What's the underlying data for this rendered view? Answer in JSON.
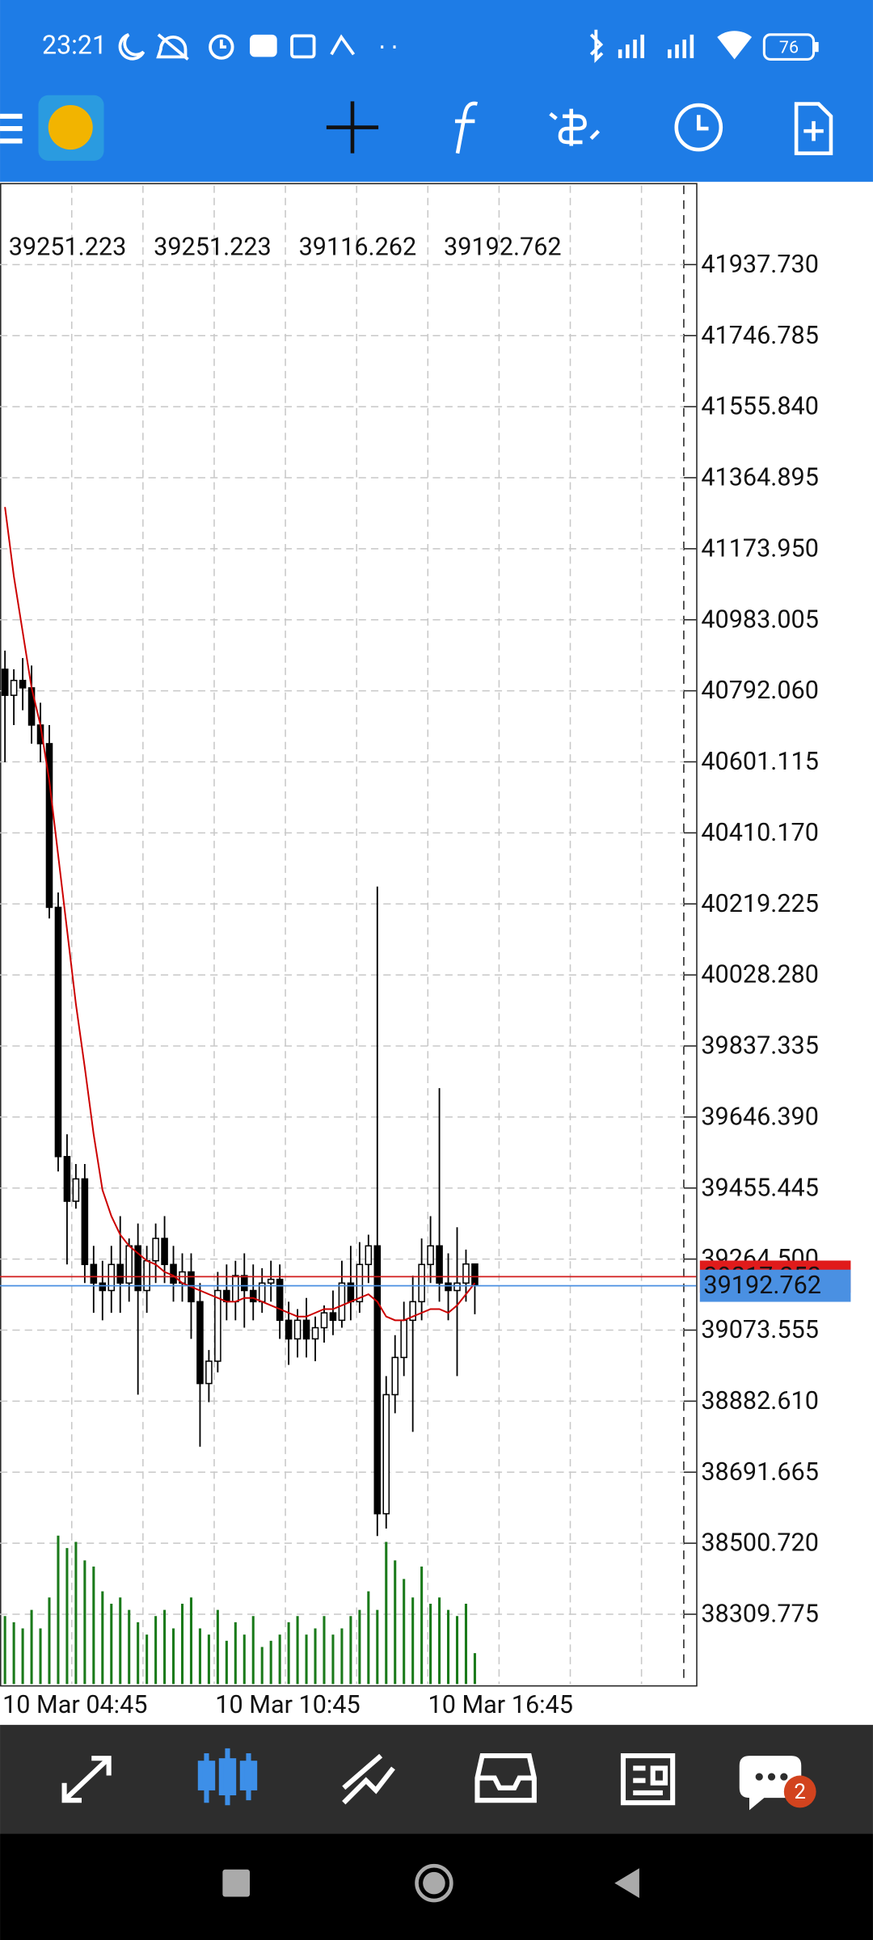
{
  "status_bar": {
    "time": "23:21",
    "battery": "76"
  },
  "chart_data": {
    "type": "candlestick",
    "ohlc_header": [
      39251.223,
      39251.223,
      39116.262,
      39192.762
    ],
    "categories": [
      "10 Mar 04:45",
      null,
      null,
      null,
      null,
      null,
      null,
      null,
      null,
      null,
      null,
      null,
      null,
      null,
      null,
      null,
      null,
      null,
      null,
      null,
      null,
      null,
      null,
      null,
      "10 Mar 10:45",
      null,
      null,
      null,
      null,
      null,
      null,
      null,
      null,
      null,
      null,
      null,
      null,
      null,
      null,
      null,
      null,
      null,
      null,
      null,
      null,
      null,
      null,
      null,
      "10 Mar 16:45",
      null,
      null,
      null,
      null,
      null
    ],
    "open": [
      40850,
      40780,
      40820,
      40800,
      40700,
      40650,
      40210,
      39540,
      39420,
      39480,
      39250,
      39200,
      39180,
      39250,
      39200,
      39300,
      39180,
      39260,
      39320,
      39250,
      39200,
      39230,
      39150,
      38930,
      38990,
      39180,
      39150,
      39220,
      39180,
      39150,
      39200,
      39210,
      39100,
      39050,
      39100,
      39050,
      39080,
      39120,
      39100,
      39200,
      39150,
      39250,
      39300,
      38580,
      38900,
      39000,
      39100,
      39150,
      39250,
      39300,
      39200,
      39180,
      39200,
      39251.223
    ],
    "high": [
      40900,
      40850,
      40880,
      40860,
      40760,
      40700,
      40250,
      39600,
      39520,
      39520,
      39300,
      39260,
      39300,
      39380,
      39320,
      39360,
      39300,
      39360,
      39380,
      39300,
      39280,
      39280,
      39200,
      39020,
      39230,
      39250,
      39260,
      39280,
      39250,
      39240,
      39260,
      39250,
      39150,
      39130,
      39160,
      39110,
      39140,
      39180,
      39260,
      39300,
      39310,
      39330,
      40266,
      38950,
      39060,
      39150,
      39220,
      39320,
      39380,
      39724,
      39280,
      39350,
      39290,
      39251.223
    ],
    "low": [
      40600,
      40700,
      40740,
      40650,
      40600,
      40180,
      39500,
      39250,
      39400,
      39200,
      39120,
      39100,
      39120,
      39120,
      39150,
      38900,
      39120,
      39200,
      39200,
      39150,
      39150,
      39050,
      38760,
      38880,
      38960,
      39100,
      39100,
      39080,
      39100,
      39120,
      39150,
      39050,
      38980,
      39000,
      39000,
      38990,
      39040,
      39060,
      39080,
      39100,
      39120,
      39200,
      38520,
      38540,
      38850,
      38950,
      38800,
      39100,
      39200,
      39150,
      39100,
      38950,
      39150,
      39116.262
    ],
    "close": [
      40780,
      40820,
      40800,
      40700,
      40650,
      40210,
      39540,
      39420,
      39480,
      39250,
      39200,
      39180,
      39250,
      39200,
      39300,
      39180,
      39260,
      39320,
      39250,
      39200,
      39230,
      39150,
      38930,
      38990,
      39180,
      39150,
      39220,
      39180,
      39150,
      39200,
      39210,
      39100,
      39050,
      39100,
      39050,
      39080,
      39120,
      39100,
      39200,
      39150,
      39250,
      39300,
      38580,
      38900,
      39000,
      39100,
      39150,
      39250,
      39300,
      39200,
      39180,
      39200,
      39251.223,
      39192.762
    ],
    "volume": [
      55,
      50,
      45,
      60,
      45,
      70,
      120,
      110,
      115,
      100,
      95,
      75,
      65,
      70,
      60,
      50,
      40,
      55,
      60,
      45,
      65,
      70,
      45,
      40,
      60,
      35,
      50,
      40,
      55,
      30,
      35,
      40,
      50,
      55,
      40,
      45,
      55,
      40,
      45,
      55,
      60,
      75,
      60,
      115,
      100,
      85,
      70,
      95,
      65,
      70,
      60,
      55,
      65,
      25
    ],
    "volume_color": "#1a7a1a",
    "ma": {
      "color": "#cc0000",
      "values": [
        41286,
        41100,
        40950,
        40800,
        40700,
        40550,
        40350,
        40150,
        39950,
        39780,
        39600,
        39450,
        39380,
        39330,
        39300,
        39280,
        39260,
        39250,
        39230,
        39220,
        39200,
        39190,
        39180,
        39170,
        39160,
        39150,
        39150,
        39160,
        39160,
        39150,
        39140,
        39130,
        39120,
        39110,
        39110,
        39120,
        39130,
        39130,
        39140,
        39150,
        39160,
        39170,
        39150,
        39110,
        39100,
        39100,
        39110,
        39120,
        39130,
        39130,
        39120,
        39140,
        39170,
        39200
      ]
    },
    "bid": 39192.762,
    "ask": 39217.252,
    "ylim": [
      38118.8,
      42157.1
    ],
    "yticks": [
      {
        "value": 41937.73,
        "label": "41937.730"
      },
      41746.785,
      {
        "value": 41555.84,
        "label": "41555.840"
      },
      41364.895,
      {
        "value": 41173.95,
        "label": "41173.950"
      },
      40983.005,
      {
        "value": 40792.06,
        "label": "40792.060"
      },
      40601.115,
      {
        "value": 40410.17,
        "label": "40410.170"
      },
      40219.225,
      {
        "value": 40028.28,
        "label": "40028.280"
      },
      39837.335,
      {
        "value": 39646.39,
        "label": "39646.390"
      },
      39455.445,
      {
        "value": 39264.5,
        "label": "39264.500"
      },
      39073.555,
      {
        "value": 38882.61,
        "label": "38882.610"
      },
      38691.665,
      {
        "value": 38500.72,
        "label": "38500.720"
      },
      38309.775
    ],
    "grid": true
  },
  "bottom_nav": {
    "chat_badge": 2
  }
}
